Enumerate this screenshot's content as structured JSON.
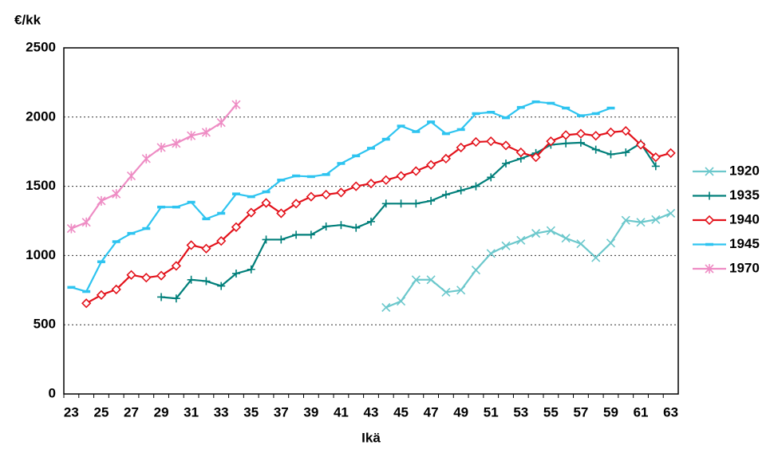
{
  "chart_data": {
    "type": "line",
    "y_label": "€/kk",
    "x_label": "Ikä",
    "categories": [
      "23",
      null,
      "25",
      null,
      "27",
      null,
      "29",
      null,
      "31",
      null,
      "33",
      null,
      "35",
      null,
      "37",
      null,
      "39",
      null,
      "41",
      null,
      "43",
      null,
      "45",
      null,
      "47",
      null,
      "49",
      null,
      "51",
      null,
      "53",
      null,
      "55",
      null,
      "57",
      null,
      "59",
      null,
      "61",
      null,
      "63"
    ],
    "ylim": [
      0,
      2500
    ],
    "yticks": [
      0,
      500,
      1000,
      1500,
      2000,
      2500
    ],
    "grid": true,
    "legend": "right",
    "series": [
      {
        "name": "1920",
        "color": "#6cc8cc",
        "marker": "x",
        "values": [
          null,
          null,
          null,
          null,
          null,
          null,
          null,
          null,
          null,
          null,
          null,
          null,
          null,
          null,
          null,
          null,
          null,
          null,
          null,
          null,
          null,
          625,
          670,
          825,
          825,
          735,
          750,
          895,
          1015,
          1070,
          1110,
          1160,
          1180,
          1125,
          1085,
          985,
          1090,
          1255,
          1240,
          1260,
          1305
        ]
      },
      {
        "name": "1935",
        "color": "#007f7a",
        "marker": "plus",
        "values": [
          null,
          null,
          null,
          null,
          null,
          null,
          700,
          690,
          825,
          815,
          780,
          870,
          900,
          1115,
          1115,
          1150,
          1150,
          1210,
          1220,
          1200,
          1245,
          1375,
          1375,
          1375,
          1395,
          1440,
          1470,
          1500,
          1565,
          1665,
          1700,
          1740,
          1800,
          1810,
          1815,
          1765,
          1730,
          1745,
          1810,
          1645,
          null
        ]
      },
      {
        "name": "1940",
        "color": "#e3121b",
        "marker": "diamond",
        "values": [
          null,
          655,
          715,
          755,
          860,
          840,
          855,
          925,
          1075,
          1050,
          1105,
          1205,
          1310,
          1380,
          1305,
          1375,
          1425,
          1440,
          1455,
          1500,
          1520,
          1545,
          1575,
          1610,
          1655,
          1700,
          1780,
          1820,
          1825,
          1795,
          1745,
          1710,
          1825,
          1870,
          1880,
          1865,
          1890,
          1900,
          1800,
          1710,
          1740
        ]
      },
      {
        "name": "1945",
        "color": "#2ec4f0",
        "marker": "dash",
        "values": [
          770,
          740,
          955,
          1100,
          1160,
          1195,
          1350,
          1350,
          1385,
          1265,
          1305,
          1445,
          1425,
          1460,
          1545,
          1575,
          1570,
          1585,
          1665,
          1720,
          1775,
          1840,
          1935,
          1895,
          1965,
          1880,
          1910,
          2025,
          2035,
          1995,
          2070,
          2110,
          2100,
          2065,
          2010,
          2025,
          2065,
          null,
          null,
          null,
          null
        ]
      },
      {
        "name": "1970",
        "color": "#ee8cc4",
        "marker": "asterisk",
        "values": [
          1195,
          1240,
          1395,
          1445,
          1575,
          1700,
          1780,
          1810,
          1865,
          1890,
          1960,
          2090,
          null,
          null,
          null,
          null,
          null,
          null,
          null,
          null,
          null,
          null,
          null,
          null,
          null,
          null,
          null,
          null,
          null,
          null,
          null,
          null,
          null,
          null,
          null,
          null,
          null,
          null,
          null,
          null,
          null
        ]
      }
    ]
  }
}
